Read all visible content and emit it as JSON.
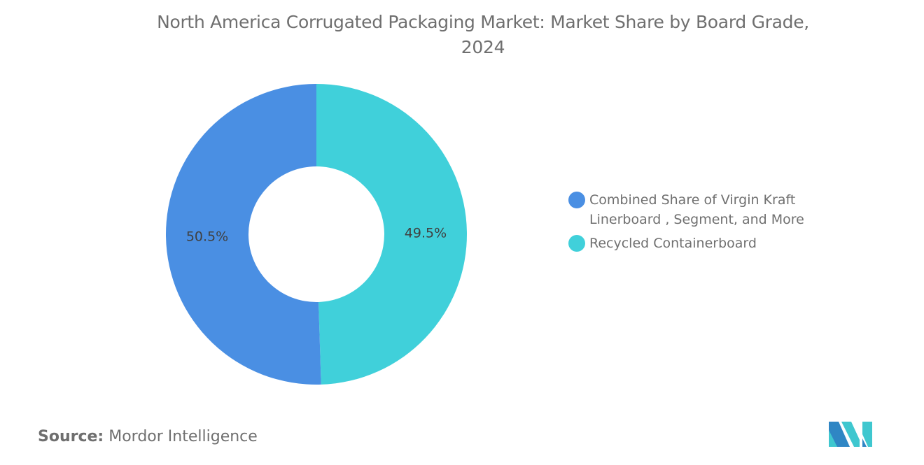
{
  "chart_data": {
    "type": "pie",
    "variant": "donut",
    "title": "North America Corrugated Packaging Market: Market Share by Board Grade, 2024",
    "title_lines": [
      "North America Corrugated Packaging Market: Market Share by Board Grade,",
      "2024"
    ],
    "slices": [
      {
        "name": "Recycled Containerboard",
        "value": 49.5,
        "label": "49.5%",
        "color": "#40D0DA"
      },
      {
        "name": "Combined Share of Virgin Kraft Linerboard , Segment, and More",
        "value": 50.5,
        "label": "50.5%",
        "color": "#4A8FE3"
      }
    ],
    "legend": {
      "placement": "right",
      "items": [
        {
          "lines": [
            "Combined Share of Virgin Kraft",
            "Linerboard , Segment, and More"
          ],
          "color": "#4A8FE3"
        },
        {
          "lines": [
            "Recycled Containerboard"
          ],
          "color": "#40D0DA"
        }
      ]
    }
  },
  "footer": {
    "source_label": "Source:",
    "source_value": "Mordor Intelligence",
    "logo_text": "Mordor Intelligence"
  }
}
